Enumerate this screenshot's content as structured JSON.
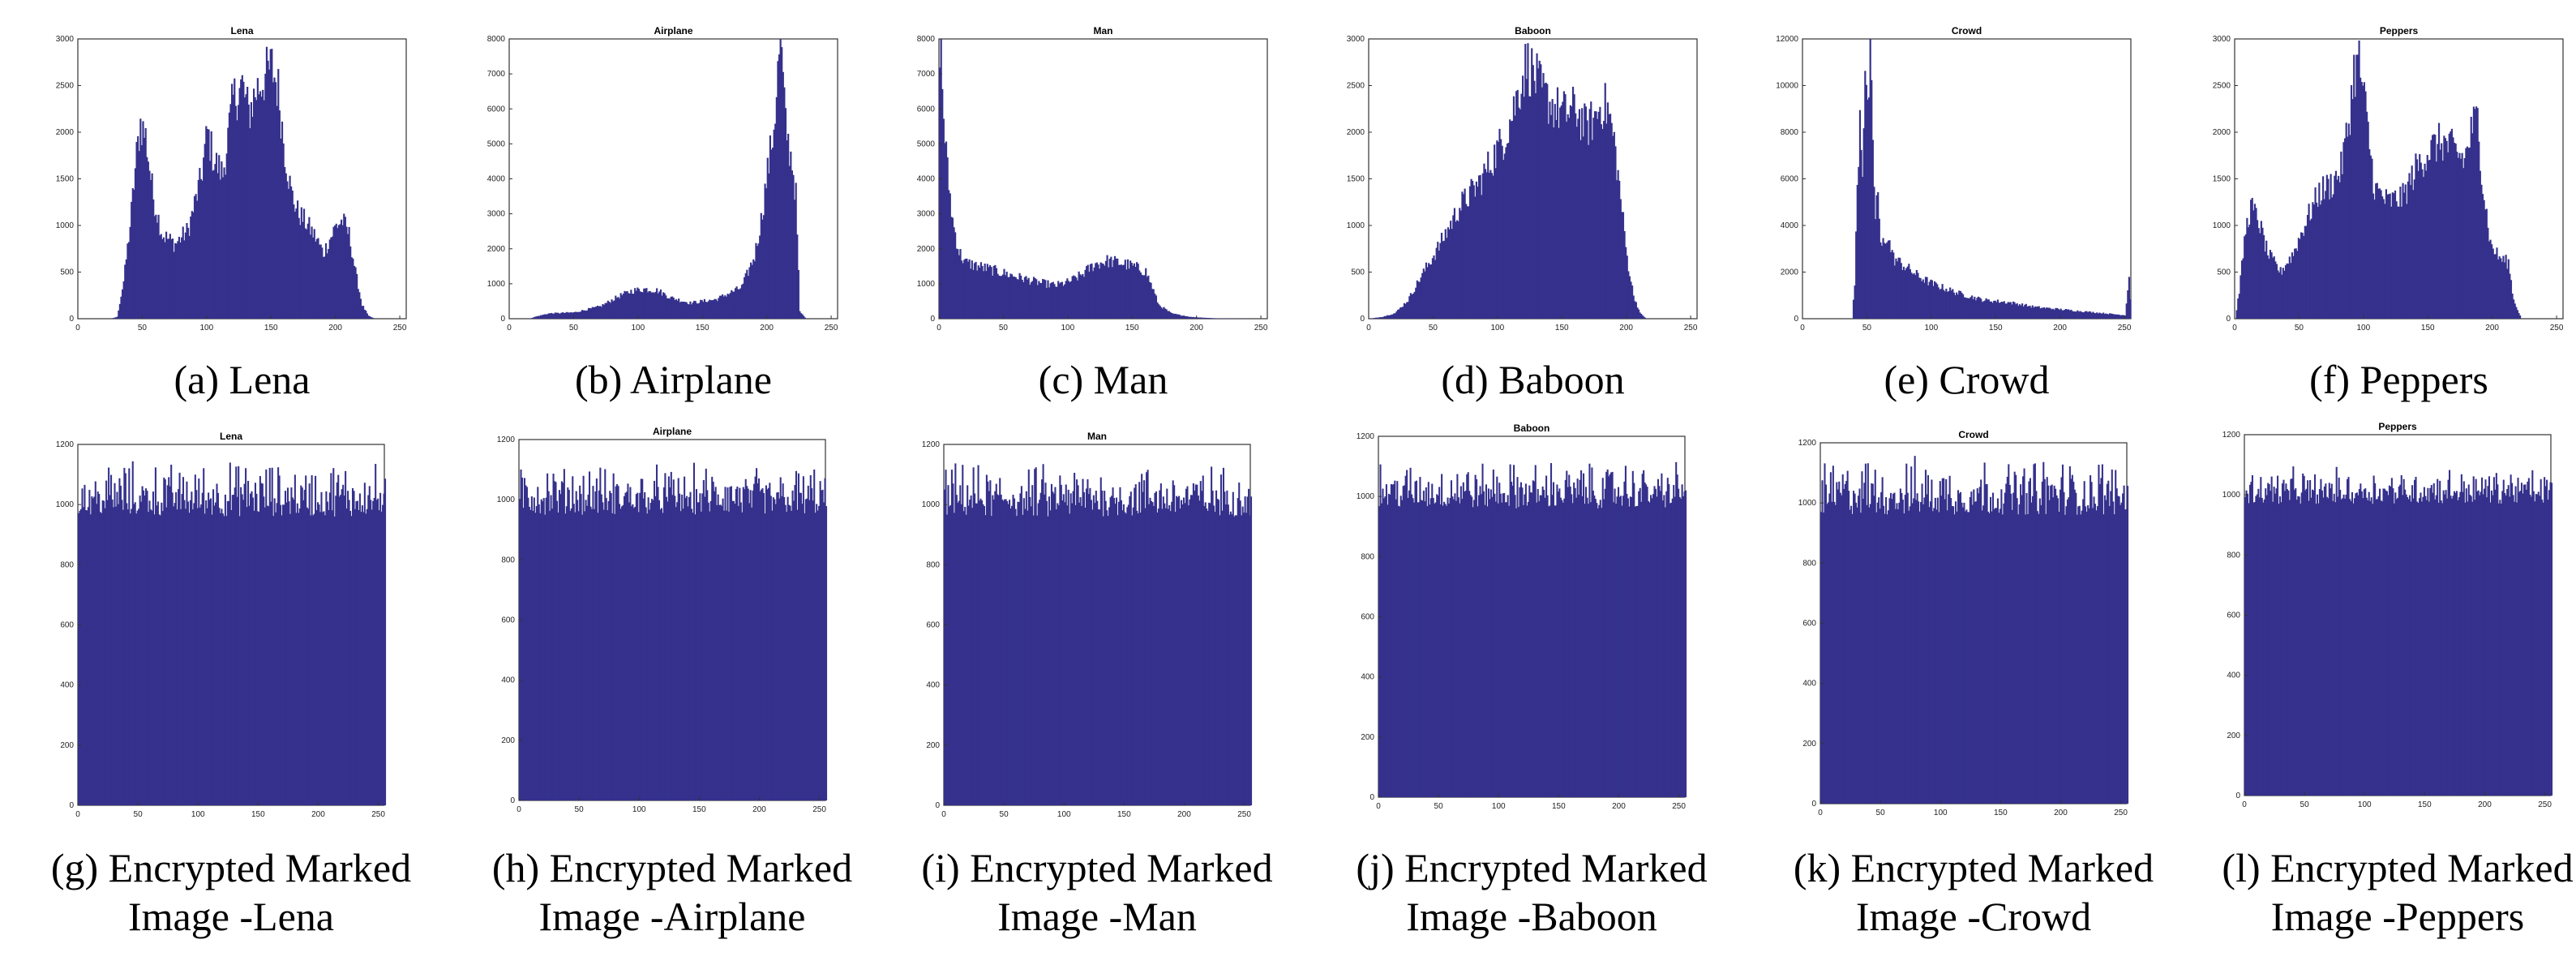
{
  "chart_data": [
    {
      "id": "a",
      "type": "histogram",
      "title": "Lena",
      "caption": "(a) Lena",
      "xlim": [
        0,
        255
      ],
      "ylim": [
        0,
        3000
      ],
      "xticks": [
        0,
        50,
        100,
        150,
        200,
        250
      ],
      "yticks": [
        0,
        500,
        1000,
        1500,
        2000,
        2500,
        3000
      ],
      "x": [
        0,
        25,
        30,
        35,
        40,
        45,
        48,
        52,
        58,
        65,
        75,
        85,
        95,
        100,
        105,
        112,
        120,
        127,
        132,
        138,
        145,
        150,
        155,
        160,
        165,
        170,
        178,
        185,
        190,
        195,
        200,
        205,
        210,
        215,
        220,
        225,
        230,
        255
      ],
      "values": [
        0,
        0,
        20,
        400,
        1000,
        1750,
        2100,
        1950,
        1300,
        900,
        800,
        950,
        1500,
        2000,
        1700,
        1550,
        2350,
        2500,
        2200,
        2450,
        2600,
        2700,
        2450,
        1800,
        1350,
        1150,
        1000,
        850,
        700,
        850,
        1000,
        1050,
        900,
        500,
        150,
        30,
        0,
        0
      ],
      "color": "#35318c"
    },
    {
      "id": "b",
      "type": "histogram",
      "title": "Airplane",
      "caption": "(b) Airplane",
      "xlim": [
        0,
        255
      ],
      "ylim": [
        0,
        8000
      ],
      "xticks": [
        0,
        50,
        100,
        150,
        200,
        250
      ],
      "yticks": [
        0,
        1000,
        2000,
        3000,
        4000,
        5000,
        6000,
        7000,
        8000
      ],
      "x": [
        0,
        15,
        20,
        30,
        50,
        70,
        85,
        95,
        105,
        115,
        125,
        140,
        160,
        180,
        190,
        195,
        200,
        205,
        208,
        210,
        213,
        216,
        219,
        222,
        225,
        230,
        255
      ],
      "values": [
        0,
        0,
        60,
        150,
        180,
        350,
        650,
        800,
        850,
        800,
        600,
        450,
        550,
        900,
        1800,
        2800,
        4200,
        5500,
        7000,
        8200,
        6000,
        5000,
        4500,
        3500,
        200,
        0,
        0
      ],
      "color": "#35318c"
    },
    {
      "id": "c",
      "type": "histogram",
      "title": "Man",
      "caption": "(c) Man",
      "xlim": [
        0,
        255
      ],
      "ylim": [
        0,
        8000
      ],
      "xticks": [
        0,
        50,
        100,
        150,
        200,
        250
      ],
      "yticks": [
        0,
        1000,
        2000,
        3000,
        4000,
        5000,
        6000,
        7000,
        8000
      ],
      "x": [
        0,
        1,
        3,
        6,
        10,
        15,
        20,
        30,
        45,
        60,
        75,
        90,
        100,
        110,
        120,
        130,
        140,
        150,
        160,
        165,
        170,
        180,
        195,
        215,
        240,
        255
      ],
      "values": [
        8000,
        7500,
        5800,
        4200,
        2800,
        1900,
        1600,
        1500,
        1350,
        1200,
        1050,
        950,
        1050,
        1250,
        1550,
        1650,
        1600,
        1500,
        1350,
        900,
        400,
        150,
        50,
        10,
        0,
        0
      ],
      "color": "#35318c"
    },
    {
      "id": "d",
      "type": "histogram",
      "title": "Baboon",
      "caption": "(d) Baboon",
      "xlim": [
        0,
        255
      ],
      "ylim": [
        0,
        3000
      ],
      "xticks": [
        0,
        50,
        100,
        150,
        200,
        250
      ],
      "yticks": [
        0,
        500,
        1000,
        1500,
        2000,
        2500,
        3000
      ],
      "x": [
        0,
        10,
        20,
        30,
        40,
        55,
        70,
        85,
        95,
        105,
        112,
        118,
        122,
        128,
        135,
        145,
        152,
        160,
        168,
        175,
        180,
        185,
        190,
        195,
        200,
        205,
        210,
        215,
        255
      ],
      "values": [
        0,
        20,
        60,
        200,
        450,
        800,
        1200,
        1450,
        1700,
        1950,
        2250,
        2550,
        2750,
        2600,
        2400,
        2250,
        2200,
        2250,
        2050,
        2150,
        2300,
        2250,
        1900,
        1300,
        650,
        250,
        60,
        0,
        0
      ],
      "color": "#35318c"
    },
    {
      "id": "e",
      "type": "histogram",
      "title": "Crowd",
      "caption": "(e) Crowd",
      "xlim": [
        0,
        255
      ],
      "ylim": [
        0,
        12000
      ],
      "xticks": [
        0,
        50,
        100,
        150,
        200,
        250
      ],
      "yticks": [
        0,
        2000,
        4000,
        6000,
        8000,
        10000,
        12000
      ],
      "x": [
        0,
        38,
        40,
        42,
        44,
        46,
        48,
        50,
        52,
        54,
        56,
        58,
        60,
        65,
        70,
        80,
        90,
        100,
        120,
        140,
        160,
        180,
        200,
        220,
        240,
        250,
        253,
        255
      ],
      "values": [
        0,
        0,
        1500,
        5500,
        9000,
        6500,
        11000,
        8500,
        11500,
        7000,
        4500,
        5500,
        3000,
        3600,
        2600,
        2200,
        1800,
        1500,
        1100,
        800,
        700,
        500,
        400,
        300,
        200,
        150,
        1800,
        0
      ],
      "color": "#35318c"
    },
    {
      "id": "f",
      "type": "histogram",
      "title": "Peppers",
      "caption": "(f) Peppers",
      "xlim": [
        0,
        255
      ],
      "ylim": [
        0,
        3000
      ],
      "xticks": [
        0,
        50,
        100,
        150,
        200,
        250
      ],
      "yticks": [
        0,
        500,
        1000,
        1500,
        2000,
        2500,
        3000
      ],
      "x": [
        0,
        3,
        8,
        12,
        18,
        25,
        35,
        45,
        55,
        65,
        75,
        82,
        88,
        92,
        96,
        100,
        108,
        118,
        130,
        140,
        150,
        160,
        170,
        178,
        184,
        188,
        192,
        198,
        205,
        212,
        216,
        222,
        255
      ],
      "values": [
        0,
        300,
        950,
        1200,
        1050,
        700,
        500,
        700,
        1050,
        1350,
        1450,
        1600,
        2100,
        2650,
        2750,
        2350,
        1400,
        1250,
        1300,
        1600,
        1800,
        1900,
        1800,
        1700,
        2050,
        2150,
        1450,
        800,
        650,
        600,
        200,
        0,
        0
      ],
      "color": "#35318c"
    },
    {
      "id": "g",
      "type": "histogram",
      "title": "Lena",
      "caption": [
        "(g) Encrypted Marked",
        "Image -Lena"
      ],
      "xlim": [
        0,
        255
      ],
      "ylim": [
        0,
        1200
      ],
      "xticks": [
        0,
        50,
        100,
        150,
        200,
        250
      ],
      "yticks": [
        0,
        200,
        400,
        600,
        800,
        1000,
        1200
      ],
      "x": [
        0,
        255
      ],
      "values": [
        1000,
        1000
      ],
      "noise": [
        960,
        1160
      ],
      "color": "#35318c"
    },
    {
      "id": "h",
      "type": "histogram",
      "title": "Airplane",
      "caption": [
        "(h) Encrypted Marked",
        "Image -Airplane"
      ],
      "xlim": [
        0,
        255
      ],
      "ylim": [
        0,
        1200
      ],
      "xticks": [
        0,
        50,
        100,
        150,
        200,
        250
      ],
      "yticks": [
        0,
        200,
        400,
        600,
        800,
        1000,
        1200
      ],
      "x": [
        0,
        255
      ],
      "values": [
        1000,
        1000
      ],
      "noise": [
        950,
        1130
      ],
      "color": "#35318c"
    },
    {
      "id": "i",
      "type": "histogram",
      "title": "Man",
      "caption": [
        "(i) Encrypted Marked",
        "Image -Man"
      ],
      "xlim": [
        0,
        255
      ],
      "ylim": [
        0,
        1200
      ],
      "xticks": [
        0,
        50,
        100,
        150,
        200,
        250
      ],
      "yticks": [
        0,
        200,
        400,
        600,
        800,
        1000,
        1200
      ],
      "x": [
        0,
        255
      ],
      "values": [
        1000,
        1000
      ],
      "noise": [
        960,
        1150
      ],
      "color": "#35318c"
    },
    {
      "id": "j",
      "type": "histogram",
      "title": "Baboon",
      "caption": [
        "(j) Encrypted Marked",
        "Image -Baboon"
      ],
      "xlim": [
        0,
        255
      ],
      "ylim": [
        0,
        1200
      ],
      "xticks": [
        0,
        50,
        100,
        150,
        200,
        250
      ],
      "yticks": [
        0,
        200,
        400,
        600,
        800,
        1000,
        1200
      ],
      "x": [
        0,
        255
      ],
      "values": [
        1000,
        1000
      ],
      "noise": [
        960,
        1130
      ],
      "color": "#35318c"
    },
    {
      "id": "k",
      "type": "histogram",
      "title": "Crowd",
      "caption": [
        "(k) Encrypted Marked",
        "Image -Crowd"
      ],
      "xlim": [
        0,
        255
      ],
      "ylim": [
        0,
        1200
      ],
      "xticks": [
        0,
        50,
        100,
        150,
        200,
        250
      ],
      "yticks": [
        0,
        200,
        400,
        600,
        800,
        1000,
        1200
      ],
      "x": [
        0,
        255
      ],
      "values": [
        1000,
        1000
      ],
      "noise": [
        960,
        1170
      ],
      "color": "#35318c"
    },
    {
      "id": "l",
      "type": "histogram",
      "title": "Peppers",
      "caption": [
        "(l) Encrypted Marked",
        "Image -Peppers"
      ],
      "xlim": [
        0,
        255
      ],
      "ylim": [
        0,
        1200
      ],
      "xticks": [
        0,
        50,
        100,
        150,
        200,
        250
      ],
      "yticks": [
        0,
        200,
        400,
        600,
        800,
        1000,
        1200
      ],
      "x": [
        0,
        255
      ],
      "values": [
        1000,
        1000
      ],
      "noise": [
        970,
        1100
      ],
      "color": "#35318c"
    }
  ]
}
